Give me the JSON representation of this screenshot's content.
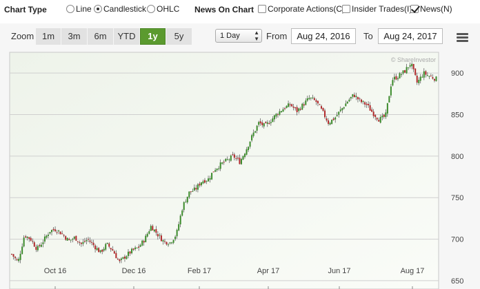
{
  "chart_type": {
    "label": "Chart Type",
    "options": [
      {
        "label": "Line",
        "selected": false
      },
      {
        "label": "Candlestick",
        "selected": true
      },
      {
        "label": "OHLC",
        "selected": false
      }
    ]
  },
  "news": {
    "label": "News On Chart",
    "options": [
      {
        "label": "Corporate Actions(C)",
        "checked": false
      },
      {
        "label": "Insider Trades(I)",
        "checked": false
      },
      {
        "label": "News(N)",
        "checked": true
      }
    ]
  },
  "toolbar": {
    "zoom_label": "Zoom",
    "zoom_buttons": [
      "1m",
      "3m",
      "6m",
      "YTD",
      "1y",
      "5y"
    ],
    "zoom_active": "1y",
    "interval": "1 Day",
    "from_label": "From",
    "from_date": "Aug 24, 2016",
    "to_label": "To",
    "to_date": "Aug 24, 2017"
  },
  "chart_data": {
    "type": "candlestick",
    "credit": "© ShareInvestor",
    "ylim": [
      640,
      925
    ],
    "y_ticks": [
      650,
      700,
      750,
      800,
      850,
      900
    ],
    "x_tick_labels": [
      "Oct 16",
      "Dec 16",
      "Feb 17",
      "Apr 17",
      "Jun 17",
      "Aug 17"
    ],
    "colors": {
      "up": "#3a8a2a",
      "down": "#b0282a",
      "wick": "#333333",
      "grid": "#cfcfcf"
    },
    "close_path": [
      682,
      672,
      705,
      700,
      688,
      698,
      710,
      712,
      706,
      698,
      702,
      694,
      700,
      692,
      684,
      694,
      686,
      672,
      680,
      686,
      690,
      700,
      716,
      706,
      697,
      696,
      706,
      740,
      756,
      760,
      770,
      772,
      784,
      790,
      795,
      800,
      793,
      808,
      825,
      840,
      836,
      844,
      852,
      858,
      862,
      854,
      862,
      870,
      866,
      854,
      840,
      846,
      856,
      866,
      874,
      866,
      862,
      852,
      844,
      848,
      892,
      896,
      902,
      912,
      888,
      900,
      896,
      893
    ]
  }
}
